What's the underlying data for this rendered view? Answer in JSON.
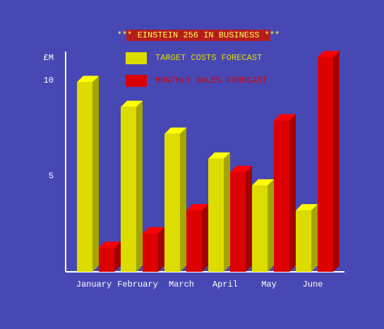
{
  "chart_data": {
    "type": "bar3d",
    "title": "*** EINSTEIN 256 IN BUSINESS ***",
    "y_label": "£M",
    "categories": [
      "January",
      "February",
      "March",
      "April",
      "May",
      "June"
    ],
    "series": [
      {
        "name": "TARGET COSTS FORECAST",
        "color": "#dcdc00",
        "values": [
          9.9,
          8.6,
          7.2,
          5.9,
          4.5,
          3.2
        ]
      },
      {
        "name": "MONTHLY SALES FORECAST",
        "color": "#dc0000",
        "values": [
          1.25,
          2.0,
          3.2,
          5.2,
          7.9,
          11.2
        ]
      }
    ],
    "ylim": [
      0,
      11.5
    ],
    "yticks": [
      5,
      10
    ]
  }
}
